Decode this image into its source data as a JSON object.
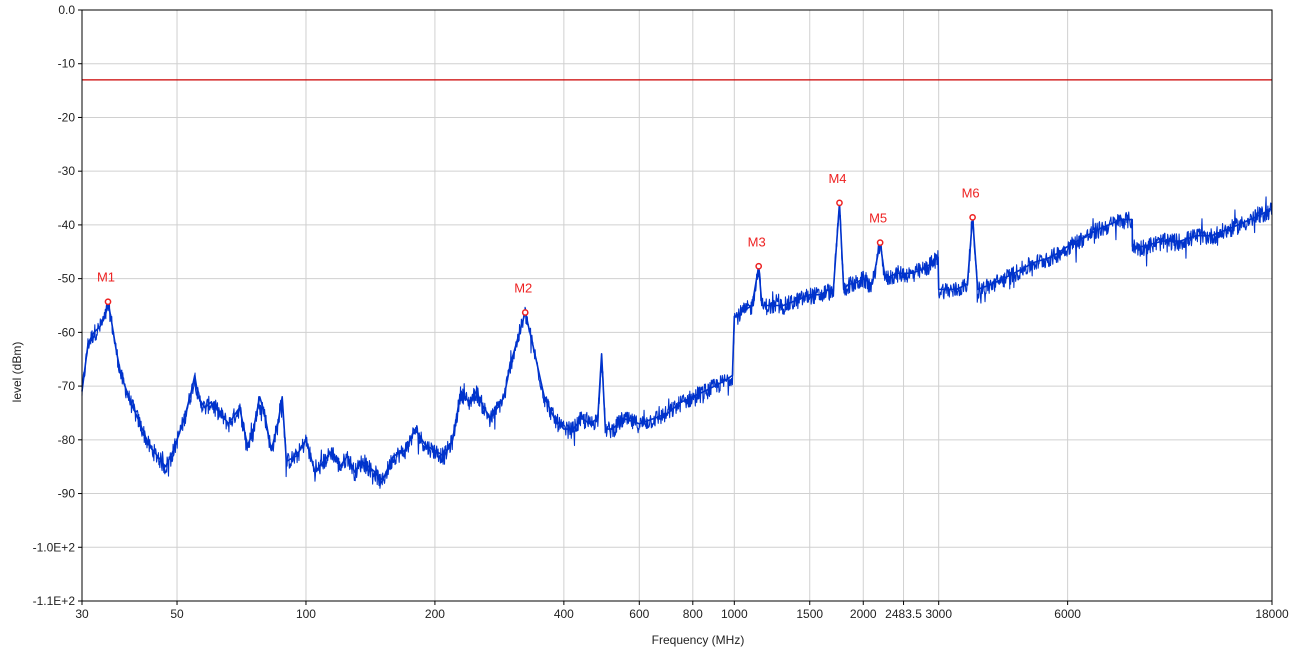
{
  "chart_data": {
    "type": "line",
    "title": "",
    "xlabel": "Frequency (MHz)",
    "ylabel": "level (dBm)",
    "x_scale": "log",
    "xlim": [
      30,
      18000
    ],
    "ylim": [
      -110,
      0
    ],
    "grid": true,
    "legend": "none",
    "colors": {
      "trace": "#0033cc",
      "limit": "#cc0000",
      "marker": "#ee2222",
      "grid": "#d0d0d0",
      "axis": "#000000"
    },
    "x_ticks": [
      {
        "value": 30,
        "label": "30"
      },
      {
        "value": 50,
        "label": "50"
      },
      {
        "value": 100,
        "label": "100"
      },
      {
        "value": 200,
        "label": "200"
      },
      {
        "value": 400,
        "label": "400"
      },
      {
        "value": 600,
        "label": "600"
      },
      {
        "value": 800,
        "label": "800"
      },
      {
        "value": 1000,
        "label": "1000"
      },
      {
        "value": 1500,
        "label": "1500"
      },
      {
        "value": 2000,
        "label": "2000"
      },
      {
        "value": 2483.5,
        "label": "2483.5"
      },
      {
        "value": 3000,
        "label": "3000"
      },
      {
        "value": 6000,
        "label": "6000"
      },
      {
        "value": 18000,
        "label": "18000"
      }
    ],
    "y_ticks": [
      {
        "value": 0,
        "label": "0.0"
      },
      {
        "value": -10,
        "label": "-10"
      },
      {
        "value": -20,
        "label": "-20"
      },
      {
        "value": -30,
        "label": "-30"
      },
      {
        "value": -40,
        "label": "-40"
      },
      {
        "value": -50,
        "label": "-50"
      },
      {
        "value": -60,
        "label": "-60"
      },
      {
        "value": -70,
        "label": "-70"
      },
      {
        "value": -80,
        "label": "-80"
      },
      {
        "value": -90,
        "label": "-90"
      },
      {
        "value": -100,
        "label": "-1.0E+2"
      },
      {
        "value": -110,
        "label": "-1.1E+2"
      }
    ],
    "limit_line": {
      "y": -13
    },
    "markers": [
      {
        "label": "M1",
        "x": 34.5,
        "y": -54.3
      },
      {
        "label": "M2",
        "x": 325,
        "y": -56.3
      },
      {
        "label": "M3",
        "x": 1140,
        "y": -47.7
      },
      {
        "label": "M4",
        "x": 1760,
        "y": -35.9
      },
      {
        "label": "M5",
        "x": 2190,
        "y": -43.3
      },
      {
        "label": "M6",
        "x": 3600,
        "y": -38.6
      }
    ],
    "series": [
      {
        "x": [
          30,
          31,
          32,
          33,
          34,
          34.5,
          35,
          36,
          37,
          39,
          41,
          43,
          45,
          47,
          49,
          50,
          52,
          54,
          55,
          56,
          58,
          60,
          63,
          66,
          70,
          73,
          75,
          78,
          80,
          83,
          86,
          88,
          90,
          95,
          100,
          105,
          110,
          115,
          120,
          125,
          130,
          135,
          140,
          145,
          150,
          160,
          170,
          180,
          190,
          200,
          210,
          220,
          230,
          240,
          250,
          260,
          270,
          280,
          290,
          300,
          310,
          325,
          340,
          360,
          380,
          400,
          420,
          440,
          460,
          480,
          490,
          500,
          520,
          550,
          600,
          650,
          700,
          750,
          800,
          850,
          900,
          950,
          990,
          1000,
          1010,
          1050,
          1100,
          1140,
          1160,
          1200,
          1300,
          1400,
          1500,
          1550,
          1600,
          1650,
          1700,
          1760,
          1800,
          1850,
          1900,
          2000,
          2100,
          2190,
          2250,
          2400,
          2600,
          2800,
          2990,
          3000,
          3100,
          3300,
          3500,
          3600,
          3700,
          4000,
          4500,
          5000,
          5500,
          6000,
          7000,
          8000,
          8490,
          8500,
          9000,
          10000,
          11000,
          12000,
          13000,
          14000,
          15000,
          16000,
          17000,
          18000
        ],
        "y": [
          -71,
          -62,
          -60,
          -59,
          -57,
          -54.3,
          -57,
          -63,
          -68,
          -73,
          -77,
          -81,
          -83,
          -85,
          -82,
          -80,
          -76,
          -71,
          -68,
          -72,
          -74,
          -73,
          -75,
          -77,
          -74,
          -81,
          -79,
          -72,
          -75,
          -82,
          -77,
          -72,
          -84,
          -83,
          -80,
          -86,
          -84,
          -82,
          -85,
          -83,
          -86,
          -84,
          -85,
          -86,
          -88,
          -83,
          -82,
          -78,
          -81,
          -82,
          -83,
          -80,
          -71,
          -73,
          -71,
          -74,
          -76,
          -74,
          -72,
          -66,
          -62,
          -56.3,
          -63,
          -72,
          -76,
          -78,
          -78,
          -76,
          -77,
          -76,
          -64,
          -78,
          -78,
          -76,
          -77,
          -76,
          -75,
          -73,
          -72,
          -71,
          -70,
          -69,
          -68,
          -57,
          -57,
          -56,
          -55,
          -47.7,
          -55,
          -55,
          -55,
          -54,
          -53,
          -53,
          -53,
          -52,
          -53,
          -35.9,
          -52,
          -51,
          -51,
          -50,
          -51,
          -43.3,
          -50,
          -49,
          -49,
          -48,
          -46,
          -52,
          -52,
          -52,
          -51,
          -38.6,
          -52,
          -51,
          -49,
          -47,
          -46,
          -44,
          -41,
          -39,
          -39,
          -44,
          -44,
          -43,
          -43,
          -42,
          -42,
          -41,
          -40,
          -39,
          -38,
          -37
        ]
      }
    ]
  }
}
